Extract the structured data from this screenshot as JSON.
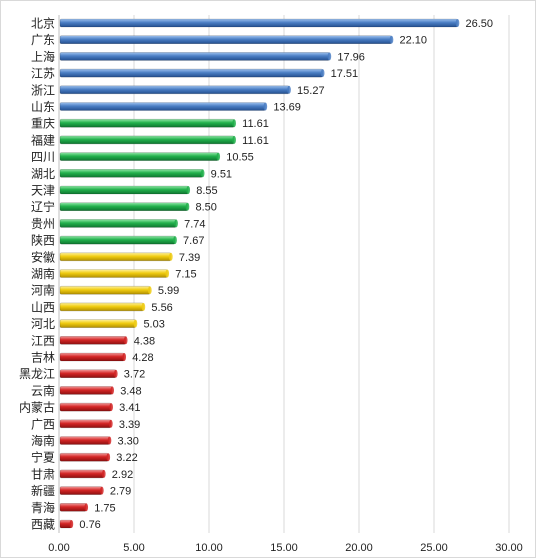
{
  "chart_data": {
    "type": "bar",
    "orientation": "horizontal",
    "categories": [
      "北京",
      "广东",
      "上海",
      "江苏",
      "浙江",
      "山东",
      "重庆",
      "福建",
      "四川",
      "湖北",
      "天津",
      "辽宁",
      "贵州",
      "陕西",
      "安徽",
      "湖南",
      "河南",
      "山西",
      "河北",
      "江西",
      "吉林",
      "黑龙江",
      "云南",
      "内蒙古",
      "广西",
      "海南",
      "宁夏",
      "甘肃",
      "新疆",
      "青海",
      "西藏"
    ],
    "values": [
      26.5,
      22.1,
      17.96,
      17.51,
      15.27,
      13.69,
      11.61,
      11.61,
      10.55,
      9.51,
      8.55,
      8.5,
      7.74,
      7.67,
      7.39,
      7.15,
      5.99,
      5.56,
      5.03,
      4.38,
      4.28,
      3.72,
      3.48,
      3.41,
      3.39,
      3.3,
      3.22,
      2.92,
      2.79,
      1.75,
      0.76
    ],
    "value_labels": [
      "26.50",
      "22.10",
      "17.96",
      "17.51",
      "15.27",
      "13.69",
      "11.61",
      "11.61",
      "10.55",
      "9.51",
      "8.55",
      "8.50",
      "7.74",
      "7.67",
      "7.39",
      "7.15",
      "5.99",
      "5.56",
      "5.03",
      "4.38",
      "4.28",
      "3.72",
      "3.48",
      "3.41",
      "3.39",
      "3.30",
      "3.22",
      "2.92",
      "2.79",
      "1.75",
      "0.76"
    ],
    "color_groups": [
      "blue",
      "blue",
      "blue",
      "blue",
      "blue",
      "blue",
      "green",
      "green",
      "green",
      "green",
      "green",
      "green",
      "green",
      "green",
      "yellow",
      "yellow",
      "yellow",
      "yellow",
      "yellow",
      "red",
      "red",
      "red",
      "red",
      "red",
      "red",
      "red",
      "red",
      "red",
      "red",
      "red",
      "red"
    ],
    "colors": {
      "blue": "#4a7ec4",
      "green": "#22b14c",
      "yellow": "#f0cc10",
      "red": "#d42626"
    },
    "xlim": [
      0,
      30
    ],
    "x_ticks": [
      "0.00",
      "5.00",
      "10.00",
      "15.00",
      "20.00",
      "25.00",
      "30.00"
    ],
    "title": "",
    "xlabel": "",
    "ylabel": "",
    "grid": true,
    "legend": false
  }
}
